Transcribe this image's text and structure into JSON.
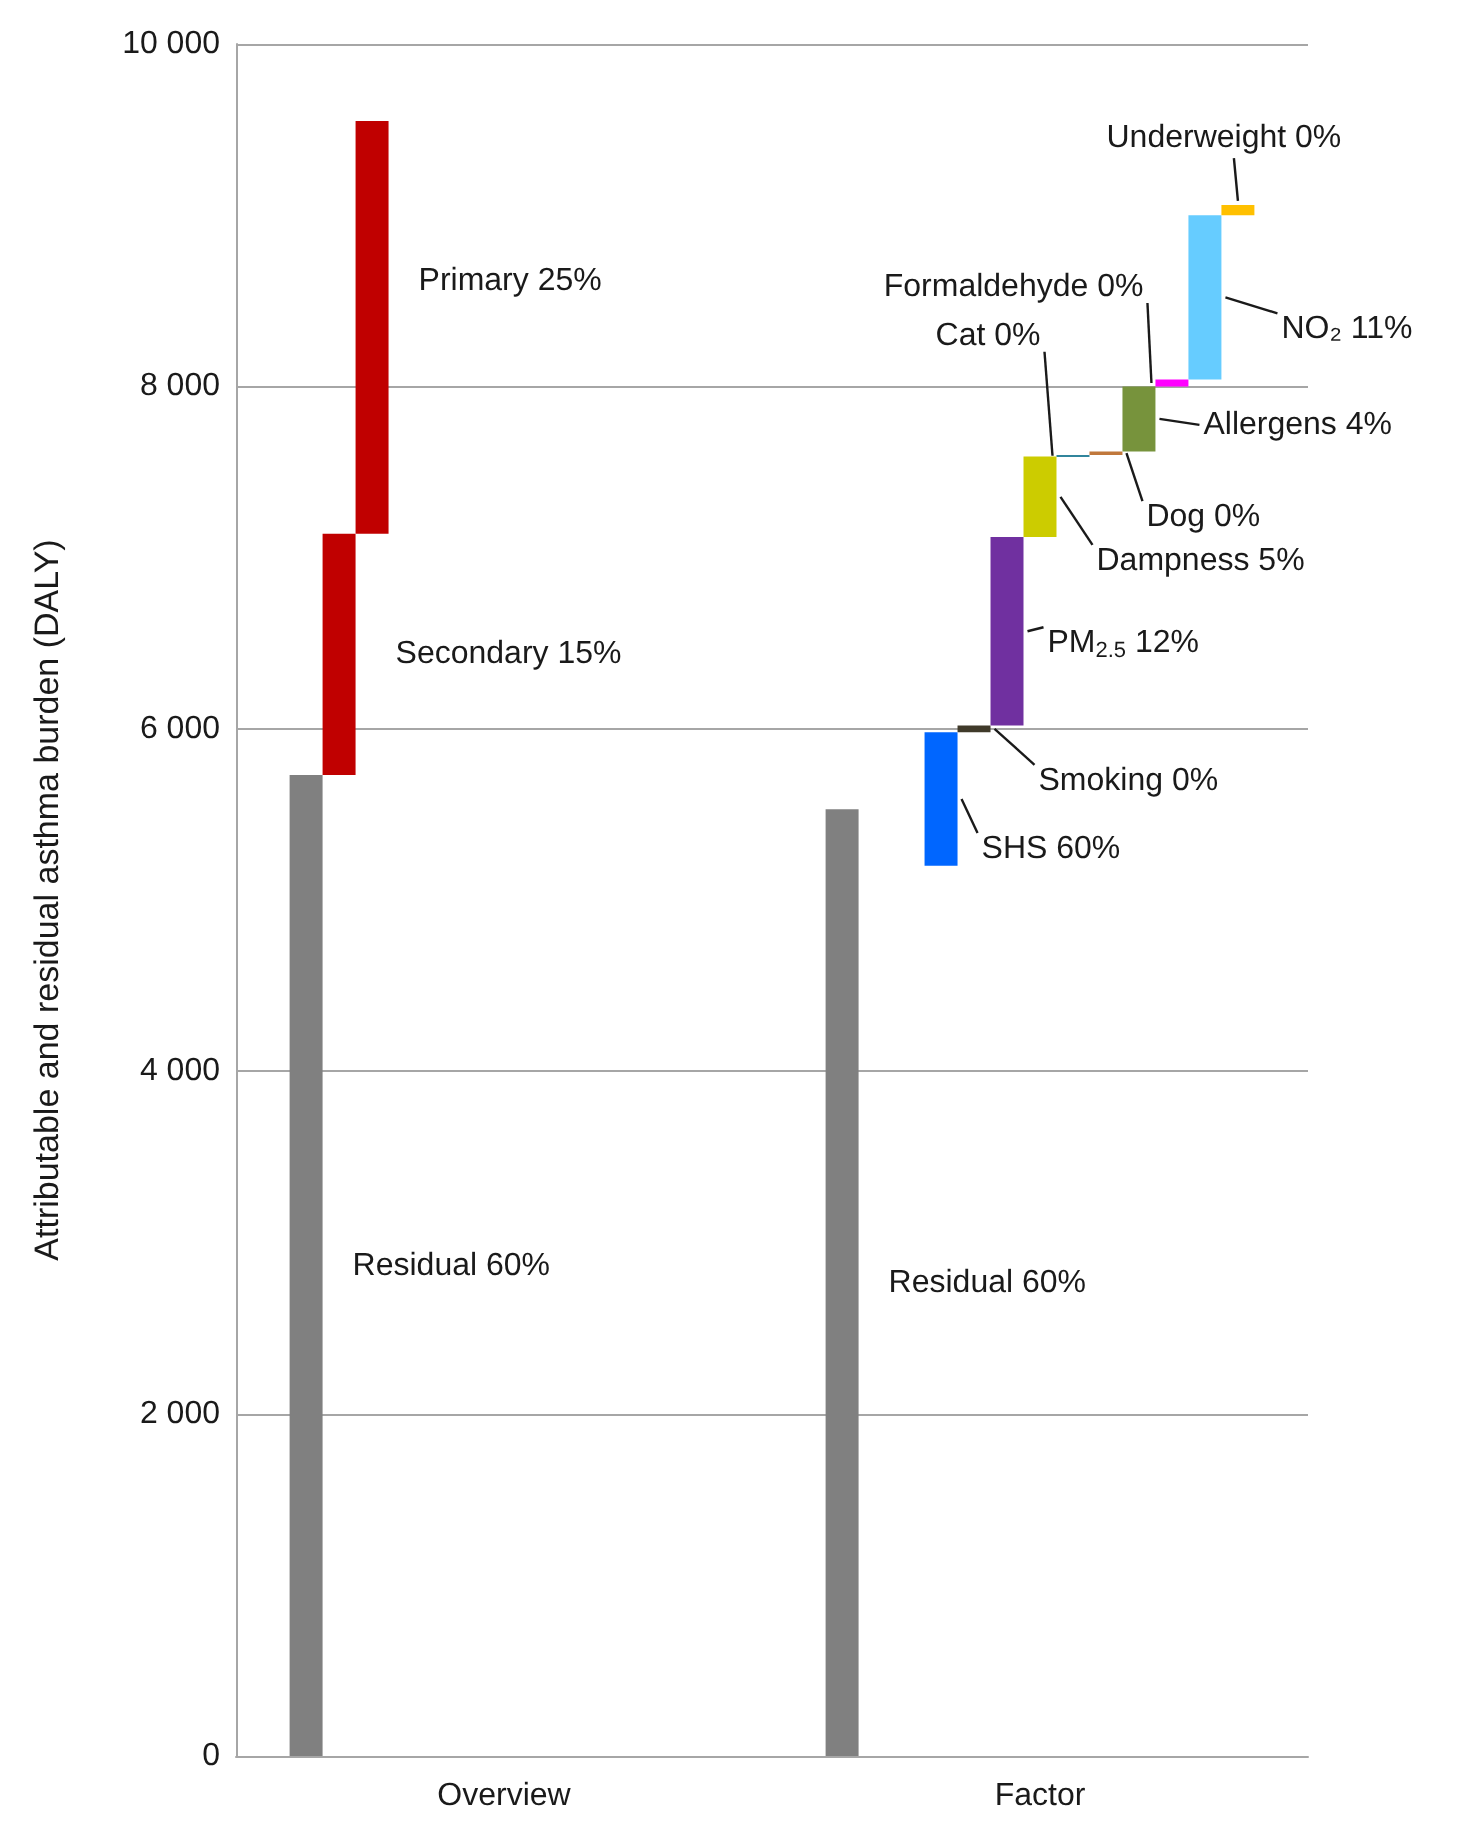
{
  "chart_data": {
    "type": "bar",
    "ylabel": "Attributable and residual asthma burden (DALY)",
    "categories": [
      "Overview",
      "Factor"
    ],
    "ylim": [
      0,
      10000
    ],
    "yticks": [
      0,
      {
        "value": 2000,
        "label": "2 000"
      },
      {
        "value": 4000,
        "label": "4 000"
      },
      {
        "value": 6000,
        "label": "6 000"
      },
      {
        "value": 8000,
        "label": "8 000"
      },
      {
        "value": 10000,
        "label": "10 000"
      }
    ],
    "grid": "y",
    "legend": false,
    "series": [
      {
        "name": "Residual 60%",
        "color": "#808080",
        "values": [
          5730,
          5530
        ],
        "base": [
          0,
          0
        ]
      },
      {
        "name": "Secondary 15%",
        "color": "#c00000",
        "values": [
          1410,
          null
        ],
        "base": [
          5730,
          null
        ]
      },
      {
        "name": "Primary 25%",
        "color": "#c00000",
        "values": [
          2410,
          null
        ],
        "base": [
          7140,
          null
        ]
      },
      {
        "name": "SHS 60%",
        "color": "#0066ff",
        "values": [
          null,
          780
        ],
        "base": [
          null,
          5200
        ]
      },
      {
        "name": "Smoking 0%",
        "color": "#403a2a",
        "values": [
          null,
          40
        ],
        "base": [
          null,
          5980
        ]
      },
      {
        "name": "PM$_{2.5}$ 12%",
        "color": "#7030a0",
        "values": [
          null,
          1100
        ],
        "base": [
          null,
          6020
        ]
      },
      {
        "name": "Dampness 5%",
        "color": "#cccc00",
        "values": [
          null,
          470
        ],
        "base": [
          null,
          7120
        ]
      },
      {
        "name": "Cat 0%",
        "color": "#31859c",
        "values": [
          null,
          10
        ],
        "base": [
          null,
          7590
        ]
      },
      {
        "name": "Dog 0%",
        "color": "#c0783c",
        "values": [
          null,
          20
        ],
        "base": [
          null,
          7600
        ]
      },
      {
        "name": "Allergens 4%",
        "color": "#77933c",
        "values": [
          null,
          380
        ],
        "base": [
          null,
          7620
        ]
      },
      {
        "name": "Formaldehyde 0%",
        "color": "#ff00ff",
        "values": [
          null,
          40
        ],
        "base": [
          null,
          8000
        ]
      },
      {
        "name": "NO₂ 11%",
        "color": "#66ccff",
        "values": [
          null,
          960
        ],
        "base": [
          null,
          8040
        ]
      },
      {
        "name": "Underweight 0%",
        "color": "#ffc000",
        "values": [
          null,
          60
        ],
        "base": [
          null,
          9000
        ]
      }
    ]
  }
}
